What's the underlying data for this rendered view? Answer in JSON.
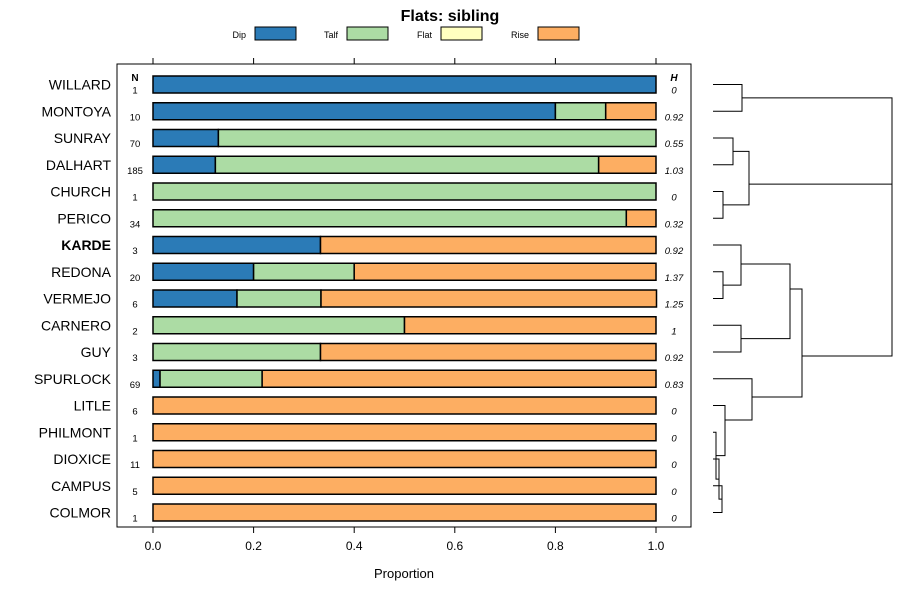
{
  "chart_data": {
    "type": "bar",
    "orientation": "horizontal",
    "stacked": true,
    "title": "Flats: sibling",
    "xlabel": "Proportion",
    "ylabel": "",
    "xlim": [
      0,
      1
    ],
    "x_ticks": [
      "0.0",
      "0.2",
      "0.4",
      "0.6",
      "0.8",
      "1.0"
    ],
    "x_tick_values": [
      0,
      0.2,
      0.4,
      0.6,
      0.8,
      1.0
    ],
    "grid": false,
    "legend_position": "top",
    "series": [
      {
        "name": "Dip",
        "color": "#2b7bb7"
      },
      {
        "name": "Talf",
        "color": "#acdca4"
      },
      {
        "name": "Flat",
        "color": "#ffffc0"
      },
      {
        "name": "Rise",
        "color": "#fdae62"
      }
    ],
    "n_header": "N",
    "h_header": "H",
    "highlight": "KARDE",
    "categories": [
      "WILLARD",
      "MONTOYA",
      "SUNRAY",
      "DALHART",
      "CHURCH",
      "PERICO",
      "KARDE",
      "REDONA",
      "VERMEJO",
      "CARNERO",
      "GUY",
      "SPURLOCK",
      "LITLE",
      "PHILMONT",
      "DIOXICE",
      "CAMPUS",
      "COLMOR"
    ],
    "rows": [
      {
        "label": "WILLARD",
        "n": "1",
        "h": "0",
        "values": [
          1.0,
          0,
          0,
          0
        ]
      },
      {
        "label": "MONTOYA",
        "n": "10",
        "h": "0.92",
        "values": [
          0.8,
          0.1,
          0,
          0.1
        ]
      },
      {
        "label": "SUNRAY",
        "n": "70",
        "h": "0.55",
        "values": [
          0.13,
          0.87,
          0,
          0
        ]
      },
      {
        "label": "DALHART",
        "n": "185",
        "h": "1.03",
        "values": [
          0.124,
          0.762,
          0,
          0.114
        ]
      },
      {
        "label": "CHURCH",
        "n": "1",
        "h": "0",
        "values": [
          0,
          1.0,
          0,
          0
        ]
      },
      {
        "label": "PERICO",
        "n": "34",
        "h": "0.32",
        "values": [
          0,
          0.941,
          0,
          0.059
        ]
      },
      {
        "label": "KARDE",
        "n": "3",
        "h": "0.92",
        "values": [
          0.333,
          0,
          0,
          0.667
        ]
      },
      {
        "label": "REDONA",
        "n": "20",
        "h": "1.37",
        "values": [
          0.2,
          0.2,
          0,
          0.6
        ]
      },
      {
        "label": "VERMEJO",
        "n": "6",
        "h": "1.25",
        "values": [
          0.167,
          0.167,
          0,
          0.667
        ]
      },
      {
        "label": "CARNERO",
        "n": "2",
        "h": "1",
        "values": [
          0,
          0.5,
          0,
          0.5
        ]
      },
      {
        "label": "GUY",
        "n": "3",
        "h": "0.92",
        "values": [
          0,
          0.333,
          0,
          0.667
        ]
      },
      {
        "label": "SPURLOCK",
        "n": "69",
        "h": "0.83",
        "values": [
          0.014,
          0.203,
          0,
          0.783
        ]
      },
      {
        "label": "LITLE",
        "n": "6",
        "h": "0",
        "values": [
          0,
          0,
          0,
          1.0
        ]
      },
      {
        "label": "PHILMONT",
        "n": "1",
        "h": "0",
        "values": [
          0,
          0,
          0,
          1.0
        ]
      },
      {
        "label": "DIOXICE",
        "n": "11",
        "h": "0",
        "values": [
          0,
          0,
          0,
          1.0
        ]
      },
      {
        "label": "CAMPUS",
        "n": "5",
        "h": "0",
        "values": [
          0,
          0,
          0,
          1.0
        ]
      },
      {
        "label": "COLMOR",
        "n": "1",
        "h": "0",
        "values": [
          0,
          0,
          0,
          1.0
        ]
      }
    ],
    "dendrogram": "hierarchical clustering tree of the 17 rows"
  }
}
